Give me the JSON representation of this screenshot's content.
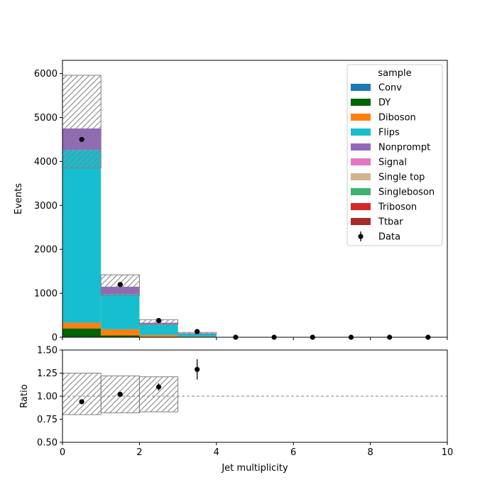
{
  "chart_data": [
    {
      "type": "bar",
      "stacked": true,
      "bin_edges": [
        0,
        1,
        2,
        3,
        4,
        5,
        6,
        7,
        8,
        9,
        10
      ],
      "xlim": [
        0,
        10
      ],
      "ylim": [
        0,
        6300
      ],
      "ylabel": "Events",
      "xticks": [
        "0",
        "2",
        "4",
        "6",
        "8",
        "10"
      ],
      "yticks": [
        "0",
        "1000",
        "2000",
        "3000",
        "4000",
        "5000",
        "6000"
      ],
      "grid": false,
      "legend": {
        "title": "sample",
        "placement": "top-right"
      },
      "series": [
        {
          "name": "Conv",
          "color": "#1f77b4",
          "values": [
            0,
            0,
            0,
            0,
            0,
            0,
            0,
            0,
            0,
            0
          ]
        },
        {
          "name": "DY",
          "color": "#006400",
          "values": [
            200,
            40,
            10,
            3,
            0,
            0,
            0,
            0,
            0,
            0
          ]
        },
        {
          "name": "Diboson",
          "color": "#ff7f0e",
          "values": [
            130,
            140,
            40,
            12,
            0,
            0,
            0,
            0,
            0,
            0
          ]
        },
        {
          "name": "Flips",
          "color": "#17becf",
          "values": [
            3930,
            800,
            230,
            60,
            0,
            0,
            0,
            0,
            0,
            0
          ]
        },
        {
          "name": "Nonprompt",
          "color": "#9467bd",
          "values": [
            490,
            170,
            50,
            15,
            0,
            0,
            0,
            0,
            0,
            0
          ]
        },
        {
          "name": "Signal",
          "color": "#e377c2",
          "values": [
            0,
            0,
            0,
            0,
            0,
            0,
            0,
            0,
            0,
            0
          ]
        },
        {
          "name": "Single top",
          "color": "#d2b48c",
          "values": [
            0,
            0,
            0,
            0,
            0,
            0,
            0,
            0,
            0,
            0
          ]
        },
        {
          "name": "Singleboson",
          "color": "#3cb371",
          "values": [
            0,
            0,
            0,
            0,
            0,
            0,
            0,
            0,
            0,
            0
          ]
        },
        {
          "name": "Triboson",
          "color": "#d62728",
          "values": [
            0,
            0,
            0,
            0,
            0,
            0,
            0,
            0,
            0,
            0
          ]
        },
        {
          "name": "Ttbar",
          "color": "#a52a2a",
          "values": [
            0,
            0,
            0,
            0,
            0,
            0,
            0,
            0,
            0,
            0
          ]
        }
      ],
      "uncertainty": {
        "down": [
          3850,
          950,
          290,
          75,
          0,
          0,
          0,
          0,
          0,
          0
        ],
        "up": [
          5960,
          1420,
          400,
          110,
          0,
          0,
          0,
          0,
          0,
          0
        ]
      },
      "data": {
        "name": "Data",
        "x": [
          0.5,
          1.5,
          2.5,
          3.5,
          4.5,
          5.5,
          6.5,
          7.5,
          8.5,
          9.5
        ],
        "y": [
          4500,
          1200,
          380,
          130,
          0,
          0,
          0,
          0,
          0,
          0
        ]
      }
    },
    {
      "type": "scatter",
      "xlabel": "Jet multiplicity",
      "ylabel": "Ratio",
      "xlim": [
        0,
        10
      ],
      "ylim": [
        0.5,
        1.5
      ],
      "xticks": [
        "0",
        "2",
        "4",
        "6",
        "8",
        "10"
      ],
      "yticks": [
        "0.50",
        "0.75",
        "1.00",
        "1.25",
        "1.50"
      ],
      "reference_line": 1.0,
      "grid": false,
      "uncertainty_band": {
        "bins": [
          [
            0,
            1
          ],
          [
            1,
            2
          ],
          [
            2,
            3
          ]
        ],
        "down": [
          0.8,
          0.82,
          0.83
        ],
        "up": [
          1.25,
          1.22,
          1.21
        ]
      },
      "points": {
        "x": [
          0.5,
          1.5,
          2.5,
          3.5
        ],
        "y": [
          0.94,
          1.02,
          1.1,
          1.29
        ],
        "yerr": [
          0.0,
          0.02,
          0.04,
          0.11
        ]
      }
    }
  ]
}
